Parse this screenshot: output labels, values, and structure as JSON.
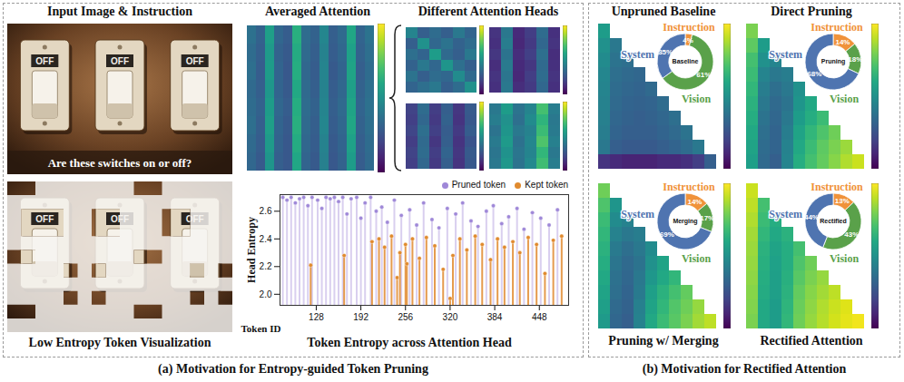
{
  "captions": [
    "(a) Motivation for Entropy-guided Token Pruning",
    "(b) Motivation for Rectified Attention"
  ],
  "images": [
    {
      "title": "Input Image & Instruction",
      "switch_labels": [
        "OFF",
        "OFF",
        "OFF"
      ],
      "question": "Are these switches on or off?"
    },
    {
      "title": "Low Entropy Token Visualization",
      "switch_labels": [
        "OFF",
        "OFF",
        "OFF"
      ]
    }
  ],
  "chart_data": [
    {
      "type": "heatmap",
      "title": "Averaged Attention",
      "tick_labels": false,
      "color_range": [
        0,
        1
      ],
      "cells": [
        [
          0.37,
          0.31,
          0.56,
          0.33,
          0.29,
          0.63,
          0.35,
          0.31,
          0.46,
          0.3,
          0.34,
          0.59,
          0.32,
          0.38
        ],
        [
          0.35,
          0.3,
          0.54,
          0.31,
          0.28,
          0.61,
          0.34,
          0.3,
          0.44,
          0.29,
          0.33,
          0.57,
          0.31,
          0.36
        ],
        [
          0.36,
          0.29,
          0.55,
          0.32,
          0.27,
          0.62,
          0.33,
          0.29,
          0.45,
          0.28,
          0.32,
          0.58,
          0.3,
          0.35
        ],
        [
          0.34,
          0.3,
          0.53,
          0.32,
          0.28,
          0.6,
          0.34,
          0.3,
          0.44,
          0.29,
          0.33,
          0.56,
          0.31,
          0.36
        ],
        [
          0.35,
          0.31,
          0.55,
          0.33,
          0.29,
          0.62,
          0.35,
          0.31,
          0.45,
          0.3,
          0.34,
          0.58,
          0.32,
          0.37
        ],
        [
          0.36,
          0.3,
          0.56,
          0.32,
          0.28,
          0.63,
          0.34,
          0.3,
          0.46,
          0.29,
          0.33,
          0.59,
          0.31,
          0.36
        ],
        [
          0.34,
          0.29,
          0.54,
          0.31,
          0.27,
          0.61,
          0.33,
          0.29,
          0.44,
          0.28,
          0.32,
          0.57,
          0.3,
          0.35
        ],
        [
          0.33,
          0.28,
          0.52,
          0.3,
          0.27,
          0.59,
          0.32,
          0.28,
          0.43,
          0.27,
          0.31,
          0.55,
          0.29,
          0.34
        ]
      ]
    },
    {
      "type": "heatmap",
      "title": "Different Attention Heads",
      "tick_labels": false,
      "color_range": [
        0,
        1
      ],
      "heads": [
        [
          [
            0.45,
            0.3,
            0.35,
            0.3,
            0.4,
            0.32
          ],
          [
            0.3,
            0.5,
            0.33,
            0.38,
            0.31,
            0.35
          ],
          [
            0.36,
            0.32,
            0.55,
            0.34,
            0.3,
            0.4
          ],
          [
            0.31,
            0.4,
            0.33,
            0.52,
            0.36,
            0.3
          ],
          [
            0.38,
            0.3,
            0.35,
            0.33,
            0.48,
            0.34
          ],
          [
            0.32,
            0.36,
            0.4,
            0.3,
            0.35,
            0.5
          ]
        ],
        [
          [
            0.15,
            0.4,
            0.12,
            0.18,
            0.35,
            0.14
          ],
          [
            0.14,
            0.42,
            0.11,
            0.17,
            0.33,
            0.15
          ],
          [
            0.16,
            0.38,
            0.13,
            0.19,
            0.36,
            0.13
          ],
          [
            0.13,
            0.41,
            0.12,
            0.16,
            0.34,
            0.14
          ],
          [
            0.15,
            0.39,
            0.11,
            0.18,
            0.35,
            0.15
          ],
          [
            0.14,
            0.4,
            0.13,
            0.17,
            0.33,
            0.14
          ]
        ],
        [
          [
            0.2,
            0.35,
            0.18,
            0.3,
            0.16,
            0.28
          ],
          [
            0.19,
            0.33,
            0.17,
            0.31,
            0.15,
            0.27
          ],
          [
            0.21,
            0.36,
            0.19,
            0.29,
            0.17,
            0.29
          ],
          [
            0.18,
            0.34,
            0.16,
            0.3,
            0.15,
            0.26
          ],
          [
            0.2,
            0.35,
            0.18,
            0.32,
            0.16,
            0.28
          ],
          [
            0.19,
            0.33,
            0.17,
            0.3,
            0.15,
            0.27
          ]
        ],
        [
          [
            0.4,
            0.55,
            0.38,
            0.45,
            0.7,
            0.42
          ],
          [
            0.42,
            0.5,
            0.36,
            0.48,
            0.65,
            0.4
          ],
          [
            0.38,
            0.52,
            0.4,
            0.44,
            0.68,
            0.41
          ],
          [
            0.41,
            0.54,
            0.37,
            0.46,
            0.72,
            0.43
          ],
          [
            0.39,
            0.51,
            0.39,
            0.45,
            0.66,
            0.4
          ],
          [
            0.4,
            0.53,
            0.38,
            0.47,
            0.69,
            0.42
          ]
        ]
      ]
    },
    {
      "type": "bar",
      "marker": "circle",
      "title": "Token Entropy across Attention Head",
      "x_label": "Token ID",
      "y_label": "Head Entropy",
      "legend": "top-right",
      "grid": false,
      "xlim": [
        76,
        490
      ],
      "xticks": [
        128,
        192,
        256,
        320,
        384,
        448
      ],
      "ylim": [
        1.92,
        2.72
      ],
      "yticks": [
        {
          "value": 2,
          "label": "2.0"
        },
        2.2,
        2.4,
        2.6
      ],
      "series": [
        {
          "name": "Pruned token",
          "color": "#9f88d8",
          "x": [
            80,
            86,
            92,
            98,
            104,
            110,
            116,
            122,
            130,
            136,
            142,
            148,
            154,
            160,
            166,
            172,
            178,
            186,
            192,
            198,
            206,
            214,
            222,
            230,
            240,
            250,
            262,
            272,
            282,
            294,
            304,
            316,
            328,
            338,
            350,
            360,
            372,
            382,
            394,
            404,
            416,
            426,
            438,
            450,
            462,
            474
          ],
          "values": [
            2.7,
            2.68,
            2.7,
            2.66,
            2.69,
            2.7,
            2.64,
            2.7,
            2.68,
            2.62,
            2.7,
            2.69,
            2.7,
            2.67,
            2.7,
            2.58,
            2.69,
            2.7,
            2.55,
            2.66,
            2.7,
            2.6,
            2.63,
            2.52,
            2.68,
            2.57,
            2.61,
            2.5,
            2.66,
            2.54,
            2.48,
            2.62,
            2.58,
            2.66,
            2.53,
            2.49,
            2.6,
            2.64,
            2.51,
            2.56,
            2.62,
            2.47,
            2.59,
            2.55,
            2.5,
            2.61
          ]
        },
        {
          "name": "Kept token",
          "color": "#e08a2e",
          "x": [
            120,
            168,
            208,
            218,
            226,
            236,
            244,
            248,
            256,
            258,
            266,
            276,
            286,
            298,
            310,
            320,
            324,
            334,
            344,
            356,
            366,
            378,
            388,
            398,
            410,
            420,
            432,
            444,
            456,
            468,
            480
          ],
          "values": [
            2.21,
            2.28,
            2.38,
            2.4,
            2.34,
            2.42,
            2.12,
            2.3,
            2.36,
            2.22,
            2.4,
            2.26,
            2.41,
            2.35,
            2.18,
            1.97,
            2.28,
            2.4,
            2.32,
            2.42,
            2.36,
            2.25,
            2.4,
            2.34,
            2.38,
            2.3,
            2.41,
            2.36,
            2.15,
            2.39,
            2.42
          ]
        }
      ]
    },
    {
      "type": "heatmap",
      "title": "Unpruned Baseline",
      "tick_labels": false,
      "color_range": [
        0,
        1
      ],
      "cells": [
        [
          0.55
        ],
        [
          0.5,
          0.4
        ],
        [
          0.48,
          0.38,
          0.36
        ],
        [
          0.46,
          0.36,
          0.34,
          0.33
        ],
        [
          0.45,
          0.35,
          0.33,
          0.32,
          0.34
        ],
        [
          0.44,
          0.34,
          0.32,
          0.31,
          0.32,
          0.35
        ],
        [
          0.43,
          0.33,
          0.31,
          0.3,
          0.31,
          0.33,
          0.36
        ],
        [
          0.42,
          0.32,
          0.3,
          0.3,
          0.3,
          0.32,
          0.34,
          0.38
        ],
        [
          0.4,
          0.3,
          0.28,
          0.28,
          0.28,
          0.3,
          0.32,
          0.35,
          0.4
        ],
        [
          0.15,
          0.12,
          0.1,
          0.1,
          0.1,
          0.12,
          0.12,
          0.14,
          0.18,
          0.3
        ]
      ],
      "pie": {
        "type": "pie",
        "center_label": "Baseline",
        "categories": [
          "Instruction",
          "Vision",
          "System"
        ],
        "values": [
          4,
          61,
          35
        ],
        "value_labels": [
          "4%",
          "61%",
          "35%"
        ],
        "colors": [
          "#f0923a",
          "#5aa14a",
          "#4f74b0"
        ]
      }
    },
    {
      "type": "heatmap",
      "title": "Direct Pruning",
      "tick_labels": false,
      "color_range": [
        0,
        1
      ],
      "cells": [
        [
          0.8
        ],
        [
          0.75,
          0.55
        ],
        [
          0.7,
          0.5,
          0.45
        ],
        [
          0.68,
          0.45,
          0.4,
          0.42
        ],
        [
          0.66,
          0.42,
          0.36,
          0.4,
          0.5
        ],
        [
          0.64,
          0.4,
          0.34,
          0.38,
          0.52,
          0.6
        ],
        [
          0.62,
          0.38,
          0.33,
          0.4,
          0.55,
          0.62,
          0.68
        ],
        [
          0.6,
          0.36,
          0.32,
          0.42,
          0.58,
          0.66,
          0.72,
          0.78
        ],
        [
          0.58,
          0.35,
          0.32,
          0.44,
          0.6,
          0.68,
          0.75,
          0.8,
          0.85
        ],
        [
          0.56,
          0.34,
          0.3,
          0.45,
          0.62,
          0.7,
          0.76,
          0.82,
          0.88,
          0.92
        ]
      ],
      "pie": {
        "type": "pie",
        "center_label": "Pruning",
        "categories": [
          "Instruction",
          "Vision",
          "System"
        ],
        "values": [
          14,
          18,
          68
        ],
        "value_labels": [
          "14%",
          "18%",
          "68%"
        ],
        "colors": [
          "#f0923a",
          "#5aa14a",
          "#4f74b0"
        ]
      }
    },
    {
      "type": "heatmap",
      "title": "Pruning w/ Merging",
      "tick_labels": false,
      "color_range": [
        0,
        1
      ],
      "cells": [
        [
          0.78
        ],
        [
          0.72,
          0.52
        ],
        [
          0.68,
          0.48,
          0.44
        ],
        [
          0.66,
          0.44,
          0.4,
          0.42
        ],
        [
          0.64,
          0.41,
          0.36,
          0.4,
          0.48
        ],
        [
          0.62,
          0.39,
          0.34,
          0.38,
          0.5,
          0.58
        ],
        [
          0.6,
          0.37,
          0.33,
          0.4,
          0.53,
          0.6,
          0.66
        ],
        [
          0.58,
          0.36,
          0.32,
          0.41,
          0.56,
          0.64,
          0.7,
          0.76
        ],
        [
          0.56,
          0.34,
          0.31,
          0.43,
          0.58,
          0.66,
          0.73,
          0.78,
          0.84
        ],
        [
          0.54,
          0.33,
          0.3,
          0.44,
          0.6,
          0.68,
          0.74,
          0.8,
          0.86,
          0.9
        ]
      ],
      "pie": {
        "type": "pie",
        "center_label": "Merging",
        "categories": [
          "Instruction",
          "Vision",
          "System"
        ],
        "values": [
          14,
          17,
          69
        ],
        "value_labels": [
          "14%",
          "17%",
          "69%"
        ],
        "colors": [
          "#f0923a",
          "#5aa14a",
          "#4f74b0"
        ]
      }
    },
    {
      "type": "heatmap",
      "title": "Rectified Attention",
      "tick_labels": false,
      "color_range": [
        0,
        1
      ],
      "cells": [
        [
          0.92
        ],
        [
          0.9,
          0.7
        ],
        [
          0.88,
          0.68,
          0.62
        ],
        [
          0.86,
          0.66,
          0.6,
          0.64
        ],
        [
          0.85,
          0.64,
          0.58,
          0.62,
          0.7
        ],
        [
          0.84,
          0.63,
          0.57,
          0.62,
          0.72,
          0.78
        ],
        [
          0.83,
          0.62,
          0.56,
          0.63,
          0.74,
          0.8,
          0.84
        ],
        [
          0.82,
          0.61,
          0.56,
          0.64,
          0.76,
          0.82,
          0.86,
          0.9
        ],
        [
          0.81,
          0.6,
          0.55,
          0.65,
          0.77,
          0.83,
          0.88,
          0.92,
          0.95
        ],
        [
          0.8,
          0.6,
          0.55,
          0.66,
          0.78,
          0.84,
          0.89,
          0.93,
          0.96,
          0.98
        ]
      ],
      "pie": {
        "type": "pie",
        "center_label": "Rectified",
        "categories": [
          "Instruction",
          "Vision",
          "System"
        ],
        "values": [
          13,
          43,
          44
        ],
        "value_labels": [
          "13%",
          "43%",
          "44%"
        ],
        "colors": [
          "#f0923a",
          "#5aa14a",
          "#4f74b0"
        ]
      }
    }
  ]
}
